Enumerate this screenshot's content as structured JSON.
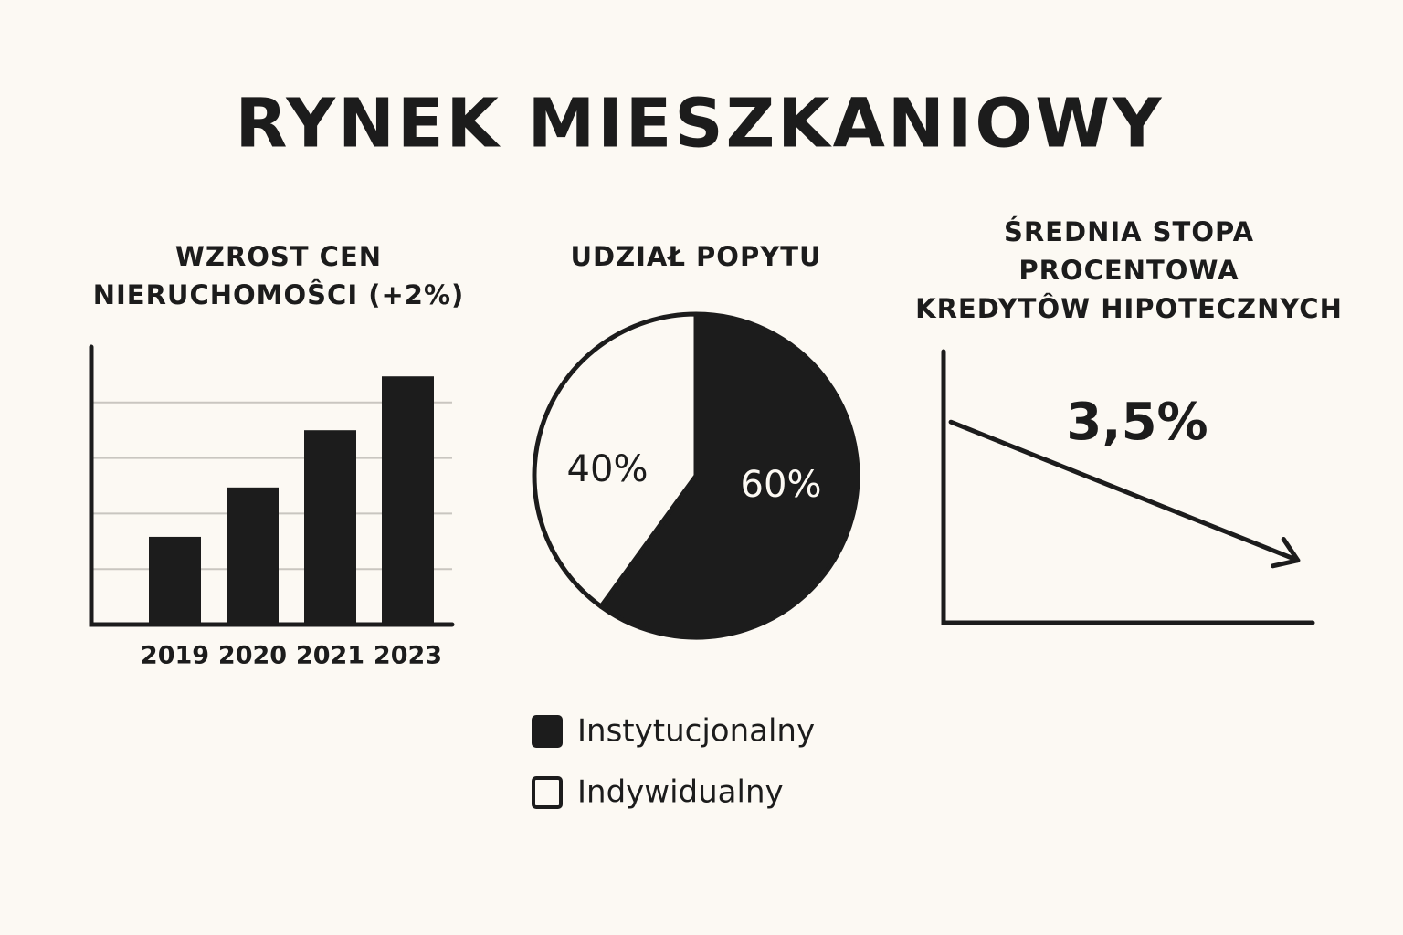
{
  "title": "RYNEK MIESZKANIOWY",
  "chart_data": [
    {
      "type": "bar",
      "title": [
        "WZROST CEN",
        "NIERUCHOMOŜCI (+2%)"
      ],
      "categories": [
        "2019",
        "2020",
        "2021",
        "2023"
      ],
      "values": [
        1.58,
        2.47,
        3.5,
        4.47
      ],
      "color": "#1c1c1c",
      "ylim": [
        0,
        5
      ],
      "yticks": [
        1,
        2,
        3,
        4
      ],
      "tick_labels": false,
      "grid": true
    },
    {
      "type": "pie",
      "title": [
        "UDZIAŁ POPYTU"
      ],
      "categories": [
        "Instytucjonalny",
        "Indywidualny"
      ],
      "values": [
        60,
        40
      ],
      "value_labels": [
        "60%",
        "40%"
      ],
      "colors": [
        "#1c1c1c",
        "#fcf9f3"
      ],
      "legend": "bottom"
    },
    {
      "type": "line",
      "title": [
        "ŚREDNIA STOPA",
        "PROCENTOWA",
        "KREDYTÔW HIPOTECZNYCH"
      ],
      "annotation": "3,5%",
      "x": [
        0.02,
        0.96
      ],
      "values": [
        0.74,
        0.23
      ],
      "xlim": [
        0,
        1
      ],
      "ylim": [
        0,
        1
      ],
      "color": "#1c1c1c",
      "arrow": true
    }
  ]
}
